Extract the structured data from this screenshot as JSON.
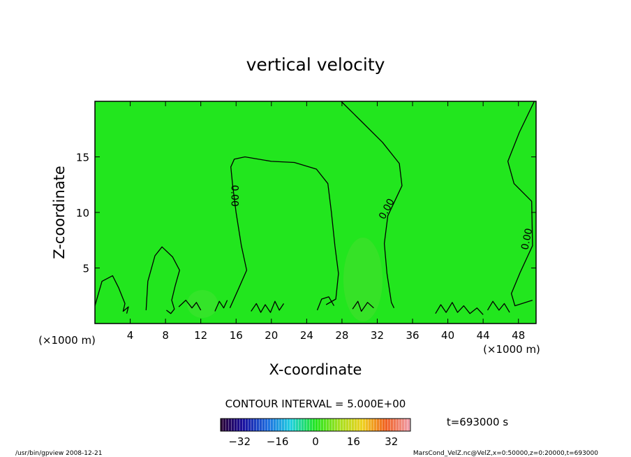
{
  "chart_data": {
    "type": "heatmap",
    "title": "vertical velocity",
    "xlabel": "X-coordinate",
    "ylabel": "Z-coordinate",
    "x_unit": "(×1000 m)",
    "x_unit_repeat": "(×1000 m)",
    "xlim": [
      0,
      50
    ],
    "ylim": [
      0,
      20
    ],
    "x_ticks": [
      4,
      8,
      12,
      16,
      20,
      24,
      28,
      32,
      36,
      40,
      44,
      48
    ],
    "y_ticks": [
      5,
      10,
      15
    ],
    "contour_label": "0.00",
    "contour_interval_text": "CONTOUR INTERVAL = 5.000E+00",
    "time_text": "t=693000 s",
    "colorbar": {
      "min": -40,
      "max": 40,
      "ticks": [
        -32,
        -16,
        0,
        16,
        32
      ]
    },
    "field_color": "#22e61e",
    "contours_zero_level": [
      {
        "name": "c1",
        "points": [
          [
            0,
            1.6
          ],
          [
            0.8,
            3.8
          ],
          [
            2,
            4.3
          ],
          [
            2.7,
            3.2
          ],
          [
            3.4,
            1.8
          ],
          [
            3.2,
            1.1
          ],
          [
            3.8,
            1.5
          ],
          [
            3.6,
            0.9
          ]
        ]
      },
      {
        "name": "c2",
        "points": [
          [
            5.8,
            1.2
          ],
          [
            6,
            3.8
          ],
          [
            6.8,
            6.1
          ],
          [
            7.6,
            6.9
          ],
          [
            8.8,
            6.0
          ],
          [
            9.6,
            4.8
          ],
          [
            9.1,
            3.4
          ],
          [
            8.7,
            2.1
          ],
          [
            9,
            1.3
          ],
          [
            8.6,
            0.9
          ],
          [
            8.1,
            1.2
          ]
        ]
      },
      {
        "name": "c3",
        "points": [
          [
            15.3,
            1.4
          ],
          [
            16.2,
            3.0
          ],
          [
            17.2,
            4.8
          ],
          [
            16.6,
            7.0
          ],
          [
            16,
            10.0
          ],
          [
            15.6,
            12.5
          ],
          [
            15.4,
            14.1
          ],
          [
            15.8,
            14.8
          ],
          [
            17,
            15.0
          ],
          [
            20,
            14.6
          ],
          [
            22.6,
            14.5
          ],
          [
            25.1,
            13.9
          ],
          [
            26.4,
            12.6
          ],
          [
            26.8,
            10.0
          ],
          [
            27.2,
            7.0
          ],
          [
            27.6,
            4.5
          ],
          [
            27.3,
            2.2
          ],
          [
            26.2,
            1.7
          ]
        ]
      },
      {
        "name": "c4",
        "points": [
          [
            27.9,
            20.0
          ],
          [
            30.2,
            18.2
          ],
          [
            32.6,
            16.3
          ],
          [
            34.5,
            14.4
          ],
          [
            34.8,
            12.4
          ],
          [
            33.2,
            9.7
          ],
          [
            32.8,
            7.2
          ],
          [
            33.1,
            4.5
          ],
          [
            33.6,
            1.9
          ],
          [
            33.9,
            1.4
          ]
        ]
      },
      {
        "name": "c5",
        "points": [
          [
            49.8,
            20.0
          ],
          [
            48.1,
            17.2
          ],
          [
            46.8,
            14.6
          ],
          [
            47.5,
            12.6
          ],
          [
            49.5,
            11.0
          ],
          [
            49.6,
            7.0
          ],
          [
            48.2,
            4.6
          ],
          [
            47.2,
            2.7
          ],
          [
            47.6,
            1.6
          ],
          [
            49.6,
            2.1
          ]
        ]
      },
      {
        "name": "c6",
        "points": [
          [
            9.5,
            1.5
          ],
          [
            10.3,
            2.1
          ],
          [
            11.0,
            1.4
          ],
          [
            11.5,
            1.9
          ],
          [
            12.0,
            1.2
          ]
        ]
      },
      {
        "name": "c7",
        "points": [
          [
            13.6,
            1.1
          ],
          [
            14.1,
            2.0
          ],
          [
            14.6,
            1.4
          ],
          [
            15.0,
            2.1
          ]
        ]
      },
      {
        "name": "c8",
        "points": [
          [
            17.7,
            1.1
          ],
          [
            18.3,
            1.8
          ],
          [
            18.8,
            1.0
          ],
          [
            19.3,
            1.7
          ],
          [
            19.9,
            1.0
          ],
          [
            20.4,
            2.0
          ],
          [
            20.9,
            1.2
          ],
          [
            21.4,
            1.8
          ]
        ]
      },
      {
        "name": "c9",
        "points": [
          [
            25.2,
            1.2
          ],
          [
            25.7,
            2.2
          ],
          [
            26.5,
            2.4
          ],
          [
            27.1,
            1.6
          ]
        ]
      },
      {
        "name": "c10",
        "points": [
          [
            29.2,
            1.3
          ],
          [
            29.8,
            2.0
          ],
          [
            30.2,
            1.1
          ],
          [
            30.9,
            1.9
          ],
          [
            31.6,
            1.4
          ]
        ]
      },
      {
        "name": "c11",
        "points": [
          [
            38.6,
            0.9
          ],
          [
            39.2,
            1.7
          ],
          [
            39.8,
            1.0
          ],
          [
            40.5,
            1.9
          ],
          [
            41.1,
            1.0
          ],
          [
            41.8,
            1.6
          ],
          [
            42.5,
            0.9
          ],
          [
            43.3,
            1.4
          ],
          [
            44.0,
            0.8
          ]
        ]
      },
      {
        "name": "c12",
        "points": [
          [
            44.5,
            1.2
          ],
          [
            45.1,
            2.0
          ],
          [
            45.8,
            1.2
          ],
          [
            46.4,
            1.8
          ],
          [
            47.0,
            1.0
          ]
        ]
      }
    ],
    "contour_label_positions": [
      {
        "x": 15.8,
        "y": 11.5,
        "angle": 90
      },
      {
        "x": 33.1,
        "y": 10.3,
        "angle": -62
      },
      {
        "x": 49.0,
        "y": 7.6,
        "angle": -78
      }
    ]
  },
  "footer": {
    "left": "/usr/bin/gpview  2008-12-21",
    "right": "MarsCond_VelZ.nc@VelZ,x=0:50000,z=0:20000,t=693000"
  }
}
